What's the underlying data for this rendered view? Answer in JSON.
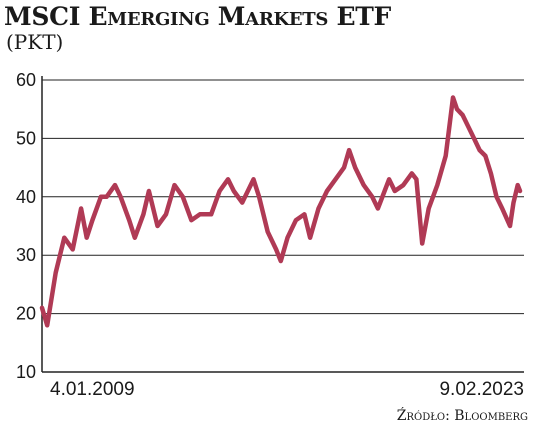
{
  "header": {
    "title": "MSCI Emerging Markets ETF",
    "subtitle": "(PKT)"
  },
  "footer": {
    "source": "Źródło: Bloomberg"
  },
  "colors": {
    "line": "#b03a55",
    "axis": "#222222",
    "grid": "#222222"
  },
  "chart_data": {
    "type": "line",
    "title": "MSCI Emerging Markets ETF",
    "subtitle": "(PKT)",
    "xlabel": "",
    "ylabel": "",
    "ylim": [
      10,
      60
    ],
    "yticks": [
      10,
      20,
      30,
      40,
      50,
      60
    ],
    "grid": "horizontal",
    "x_start_label": "4.01.2009",
    "x_end_label": "9.02.2023",
    "series": [
      {
        "x": [
          "2009-01-04",
          "2009-03-01",
          "2009-06-01",
          "2009-09-01",
          "2009-12-01",
          "2010-03-01",
          "2010-05-01",
          "2010-07-01",
          "2010-10-01",
          "2010-12-01",
          "2011-03-01",
          "2011-05-01",
          "2011-08-01",
          "2011-10-01",
          "2012-01-01",
          "2012-03-01",
          "2012-06-01",
          "2012-09-01",
          "2012-12-01",
          "2013-03-01",
          "2013-06-01",
          "2013-09-01",
          "2014-01-01",
          "2014-04-01",
          "2014-07-01",
          "2014-09-01",
          "2014-12-01",
          "2015-04-01",
          "2015-06-01",
          "2015-09-01",
          "2015-12-01",
          "2016-01-20",
          "2016-04-01",
          "2016-07-01",
          "2016-10-01",
          "2016-12-01",
          "2017-03-01",
          "2017-06-01",
          "2017-09-01",
          "2017-12-01",
          "2018-01-25",
          "2018-04-01",
          "2018-07-01",
          "2018-10-01",
          "2018-12-01",
          "2019-04-01",
          "2019-06-01",
          "2019-09-01",
          "2019-12-01",
          "2020-01-20",
          "2020-03-23",
          "2020-06-01",
          "2020-09-01",
          "2020-12-01",
          "2021-02-17",
          "2021-04-01",
          "2021-06-01",
          "2021-08-01",
          "2021-10-01",
          "2021-12-01",
          "2022-02-01",
          "2022-04-01",
          "2022-06-01",
          "2022-08-01",
          "2022-10-24",
          "2022-12-01",
          "2023-01-15",
          "2023-02-09"
        ],
        "values": [
          21,
          18,
          27,
          33,
          31,
          38,
          33,
          36,
          40,
          40,
          42,
          40,
          36,
          33,
          37,
          41,
          35,
          37,
          42,
          40,
          36,
          37,
          37,
          41,
          43,
          41,
          39,
          43,
          40,
          34,
          31,
          29,
          33,
          36,
          37,
          33,
          38,
          41,
          43,
          45,
          48,
          45,
          42,
          40,
          38,
          43,
          41,
          42,
          44,
          43,
          32,
          38,
          42,
          47,
          57,
          55,
          54,
          52,
          50,
          48,
          47,
          44,
          40,
          38,
          35,
          39,
          42,
          41
        ]
      }
    ]
  }
}
